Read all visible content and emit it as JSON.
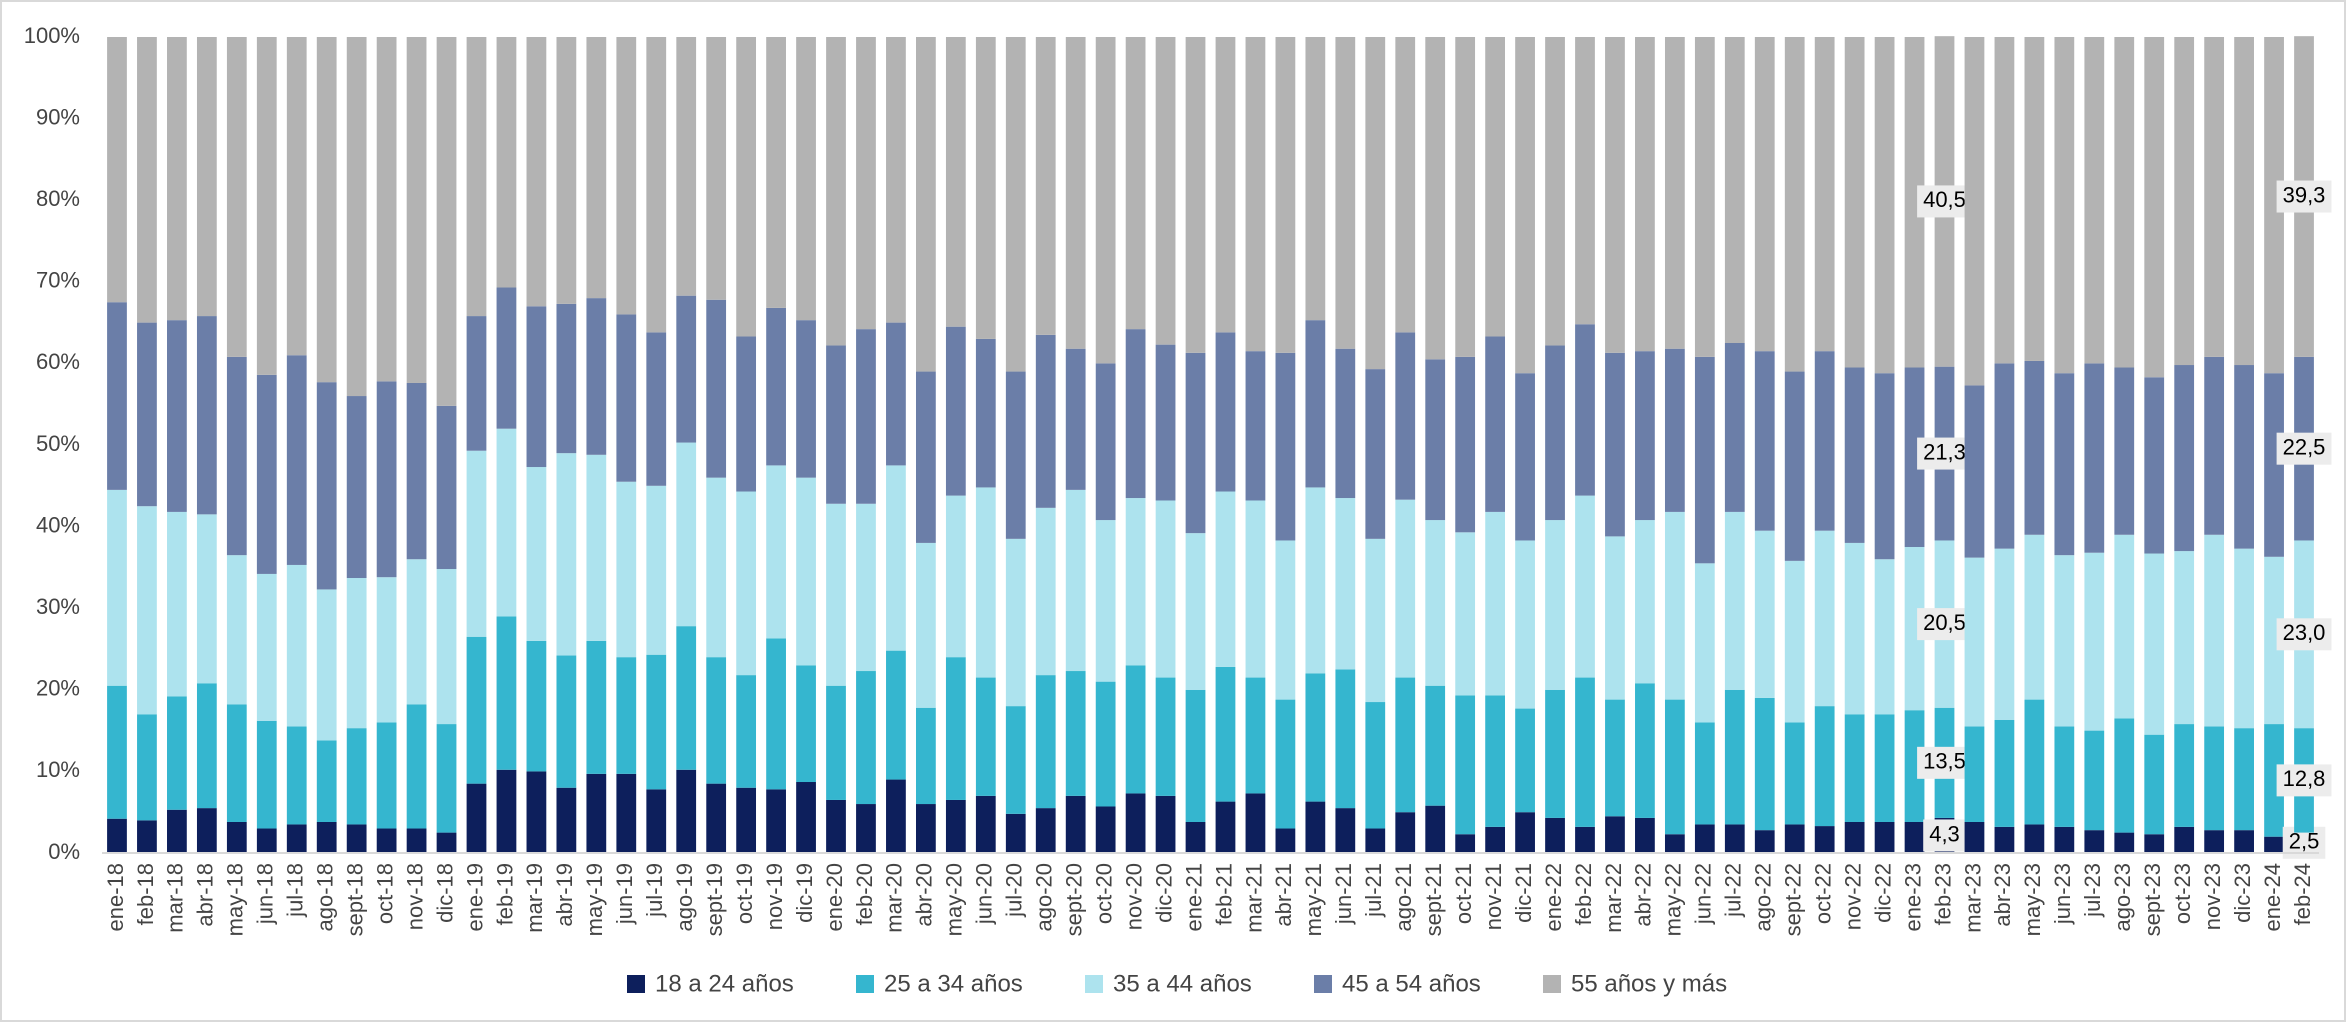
{
  "chart_data": {
    "type": "stacked_bar",
    "categories": [
      "ene-18",
      "feb-18",
      "mar-18",
      "abr-18",
      "may-18",
      "jun-18",
      "jul-18",
      "ago-18",
      "sept-18",
      "oct-18",
      "nov-18",
      "dic-18",
      "ene-19",
      "feb-19",
      "mar-19",
      "abr-19",
      "may-19",
      "jun-19",
      "jul-19",
      "ago-19",
      "sept-19",
      "oct-19",
      "nov-19",
      "dic-19",
      "ene-20",
      "feb-20",
      "mar-20",
      "abr-20",
      "may-20",
      "jun-20",
      "jul-20",
      "ago-20",
      "sept-20",
      "oct-20",
      "nov-20",
      "dic-20",
      "ene-21",
      "feb-21",
      "mar-21",
      "abr-21",
      "may-21",
      "jun-21",
      "jul-21",
      "ago-21",
      "sept-21",
      "oct-21",
      "nov-21",
      "dic-21",
      "ene-22",
      "feb-22",
      "mar-22",
      "abr-22",
      "may-22",
      "jun-22",
      "jul-22",
      "ago-22",
      "sept-22",
      "oct-22",
      "nov-22",
      "dic-22",
      "ene-23",
      "feb-23",
      "mar-23",
      "abr-23",
      "may-23",
      "jun-23",
      "jul-23",
      "ago-23",
      "sept-23",
      "oct-23",
      "nov-23",
      "dic-23",
      "ene-24",
      "feb-24"
    ],
    "series": [
      {
        "name": "18 a 24 años",
        "color": "#0d1f5c",
        "values": [
          4.2,
          4.0,
          5.3,
          5.5,
          3.8,
          3.0,
          3.5,
          3.8,
          3.5,
          3.0,
          3.0,
          2.5,
          8.5,
          10.2,
          10.0,
          8.0,
          9.7,
          9.7,
          7.8,
          10.2,
          8.5,
          8.0,
          7.8,
          8.7,
          6.5,
          6.0,
          9.0,
          6.0,
          6.5,
          7.0,
          4.8,
          5.5,
          7.0,
          5.7,
          7.3,
          7.0,
          3.8,
          6.3,
          7.3,
          3.0,
          6.3,
          5.5,
          3.0,
          5.0,
          5.8,
          2.3,
          3.2,
          5.0,
          4.3,
          3.2,
          4.5,
          4.3,
          2.3,
          3.5,
          3.5,
          2.8,
          3.5,
          3.3,
          3.8,
          3.8,
          3.8,
          4.3,
          3.8,
          3.2,
          3.5,
          3.2,
          2.8,
          2.5,
          2.3,
          3.2,
          2.8,
          2.8,
          2.0,
          2.5
        ],
        "value_labels": [
          null,
          null,
          null,
          null,
          null,
          null,
          null,
          null,
          null,
          null,
          null,
          null,
          null,
          null,
          null,
          null,
          null,
          null,
          null,
          null,
          null,
          null,
          null,
          null,
          null,
          null,
          null,
          null,
          null,
          null,
          null,
          null,
          null,
          null,
          null,
          null,
          null,
          null,
          null,
          null,
          null,
          null,
          null,
          null,
          null,
          null,
          null,
          null,
          null,
          null,
          null,
          null,
          null,
          null,
          null,
          null,
          null,
          null,
          null,
          null,
          null,
          "4,3",
          null,
          null,
          null,
          null,
          null,
          null,
          null,
          null,
          null,
          null,
          null,
          "2,5"
        ]
      },
      {
        "name": "25 a 34 años",
        "color": "#35b6cf",
        "values": [
          16.3,
          13.0,
          13.9,
          15.3,
          14.4,
          13.2,
          12.0,
          10.0,
          11.8,
          13.0,
          15.2,
          13.3,
          18.0,
          18.8,
          16.0,
          16.2,
          16.3,
          14.3,
          16.5,
          17.6,
          15.5,
          13.8,
          18.5,
          14.3,
          14.0,
          16.3,
          15.8,
          11.8,
          17.5,
          14.5,
          13.2,
          16.3,
          15.3,
          15.3,
          15.7,
          14.5,
          16.2,
          16.5,
          14.2,
          15.8,
          15.7,
          17.0,
          15.5,
          16.5,
          14.7,
          17.0,
          16.1,
          12.7,
          15.7,
          18.3,
          14.3,
          16.5,
          16.5,
          12.5,
          16.5,
          16.2,
          12.5,
          14.7,
          13.2,
          13.2,
          13.7,
          13.5,
          11.7,
          13.1,
          15.3,
          12.3,
          12.2,
          14.0,
          12.2,
          12.6,
          12.7,
          12.5,
          13.8,
          12.8
        ],
        "value_labels": [
          null,
          null,
          null,
          null,
          null,
          null,
          null,
          null,
          null,
          null,
          null,
          null,
          null,
          null,
          null,
          null,
          null,
          null,
          null,
          null,
          null,
          null,
          null,
          null,
          null,
          null,
          null,
          null,
          null,
          null,
          null,
          null,
          null,
          null,
          null,
          null,
          null,
          null,
          null,
          null,
          null,
          null,
          null,
          null,
          null,
          null,
          null,
          null,
          null,
          null,
          null,
          null,
          null,
          null,
          null,
          null,
          null,
          null,
          null,
          null,
          null,
          "13,5",
          null,
          null,
          null,
          null,
          null,
          null,
          null,
          null,
          null,
          null,
          null,
          "12,8"
        ]
      },
      {
        "name": "35 a 44 años",
        "color": "#ade3ee",
        "values": [
          24.0,
          25.5,
          22.6,
          20.7,
          18.3,
          18.0,
          19.8,
          18.5,
          18.4,
          17.8,
          17.8,
          19.0,
          22.8,
          23.0,
          21.3,
          24.8,
          22.8,
          21.5,
          20.7,
          22.5,
          22.0,
          22.5,
          21.2,
          23.0,
          22.3,
          20.5,
          22.7,
          20.2,
          19.8,
          23.3,
          20.5,
          20.5,
          22.2,
          19.8,
          20.5,
          21.7,
          19.2,
          21.5,
          21.7,
          19.5,
          22.8,
          21.0,
          20.0,
          21.8,
          20.3,
          20.0,
          22.5,
          20.6,
          20.8,
          22.3,
          20.0,
          20.0,
          23.0,
          19.5,
          21.8,
          20.5,
          19.8,
          21.5,
          21.0,
          19.0,
          20.0,
          20.5,
          20.7,
          21.0,
          20.2,
          21.0,
          21.8,
          22.5,
          22.2,
          21.2,
          23.5,
          22.0,
          20.5,
          23.0
        ],
        "value_labels": [
          null,
          null,
          null,
          null,
          null,
          null,
          null,
          null,
          null,
          null,
          null,
          null,
          null,
          null,
          null,
          null,
          null,
          null,
          null,
          null,
          null,
          null,
          null,
          null,
          null,
          null,
          null,
          null,
          null,
          null,
          null,
          null,
          null,
          null,
          null,
          null,
          null,
          null,
          null,
          null,
          null,
          null,
          null,
          null,
          null,
          null,
          null,
          null,
          null,
          null,
          null,
          null,
          null,
          null,
          null,
          null,
          null,
          null,
          null,
          null,
          null,
          "20,5",
          null,
          null,
          null,
          null,
          null,
          null,
          null,
          null,
          null,
          null,
          null,
          "23,0"
        ]
      },
      {
        "name": "45 a 54 años",
        "color": "#6b7ea8",
        "values": [
          23.0,
          22.5,
          23.5,
          24.3,
          24.3,
          24.4,
          25.7,
          25.4,
          22.3,
          24.0,
          21.6,
          20.0,
          16.5,
          17.3,
          19.7,
          18.3,
          19.2,
          20.5,
          18.8,
          18.0,
          21.8,
          19.0,
          19.3,
          19.3,
          19.4,
          21.4,
          17.5,
          21.0,
          20.7,
          18.2,
          20.5,
          21.2,
          17.3,
          19.2,
          20.7,
          19.1,
          22.1,
          19.5,
          18.3,
          23.0,
          20.5,
          18.3,
          20.8,
          20.5,
          19.7,
          21.5,
          21.5,
          20.5,
          21.4,
          21.0,
          22.5,
          20.7,
          20.0,
          25.3,
          20.7,
          22.0,
          23.2,
          22.0,
          21.5,
          22.8,
          22.0,
          21.3,
          21.1,
          22.7,
          21.3,
          22.3,
          23.2,
          20.5,
          21.6,
          22.8,
          21.8,
          22.5,
          22.5,
          22.5
        ],
        "value_labels": [
          null,
          null,
          null,
          null,
          null,
          null,
          null,
          null,
          null,
          null,
          null,
          null,
          null,
          null,
          null,
          null,
          null,
          null,
          null,
          null,
          null,
          null,
          null,
          null,
          null,
          null,
          null,
          null,
          null,
          null,
          null,
          null,
          null,
          null,
          null,
          null,
          null,
          null,
          null,
          null,
          null,
          null,
          null,
          null,
          null,
          null,
          null,
          null,
          null,
          null,
          null,
          null,
          null,
          null,
          null,
          null,
          null,
          null,
          null,
          null,
          null,
          "21,3",
          null,
          null,
          null,
          null,
          null,
          null,
          null,
          null,
          null,
          null,
          null,
          "22,5"
        ]
      },
      {
        "name": "55 años y más",
        "color": "#b3b3b3",
        "values": [
          32.5,
          35.0,
          34.7,
          34.2,
          39.2,
          41.4,
          39.0,
          42.3,
          44.0,
          42.2,
          42.4,
          45.2,
          34.2,
          30.7,
          33.0,
          32.7,
          32.0,
          34.0,
          36.2,
          31.7,
          32.2,
          36.7,
          33.2,
          34.7,
          37.8,
          35.8,
          35.0,
          41.0,
          35.5,
          37.0,
          41.0,
          36.5,
          38.2,
          40.0,
          35.8,
          37.7,
          38.7,
          36.2,
          38.5,
          38.7,
          34.7,
          38.2,
          40.7,
          36.2,
          39.5,
          39.2,
          36.7,
          41.2,
          37.8,
          35.2,
          38.7,
          38.5,
          38.2,
          39.2,
          37.5,
          38.5,
          41.0,
          38.5,
          40.5,
          41.2,
          40.5,
          40.5,
          42.7,
          40.0,
          39.7,
          41.2,
          40.0,
          40.5,
          41.7,
          40.2,
          39.2,
          40.2,
          41.2,
          39.3
        ],
        "value_labels": [
          null,
          null,
          null,
          null,
          null,
          null,
          null,
          null,
          null,
          null,
          null,
          null,
          null,
          null,
          null,
          null,
          null,
          null,
          null,
          null,
          null,
          null,
          null,
          null,
          null,
          null,
          null,
          null,
          null,
          null,
          null,
          null,
          null,
          null,
          null,
          null,
          null,
          null,
          null,
          null,
          null,
          null,
          null,
          null,
          null,
          null,
          null,
          null,
          null,
          null,
          null,
          null,
          null,
          null,
          null,
          null,
          null,
          null,
          null,
          null,
          null,
          "40,5",
          null,
          null,
          null,
          null,
          null,
          null,
          null,
          null,
          null,
          null,
          null,
          "39,3"
        ]
      }
    ],
    "ylim": [
      0,
      100
    ],
    "yticks": [
      {
        "value": 0,
        "label": "0%"
      },
      {
        "value": 10,
        "label": "10%"
      },
      {
        "value": 20,
        "label": "20%"
      },
      {
        "value": 30,
        "label": "30%"
      },
      {
        "value": 40,
        "label": "40%"
      },
      {
        "value": 50,
        "label": "50%"
      },
      {
        "value": 60,
        "label": "60%"
      },
      {
        "value": 70,
        "label": "70%"
      },
      {
        "value": 80,
        "label": "80%"
      },
      {
        "value": 90,
        "label": "90%"
      },
      {
        "value": 100,
        "label": "100%"
      }
    ],
    "grid": false,
    "legend": "bottom"
  }
}
